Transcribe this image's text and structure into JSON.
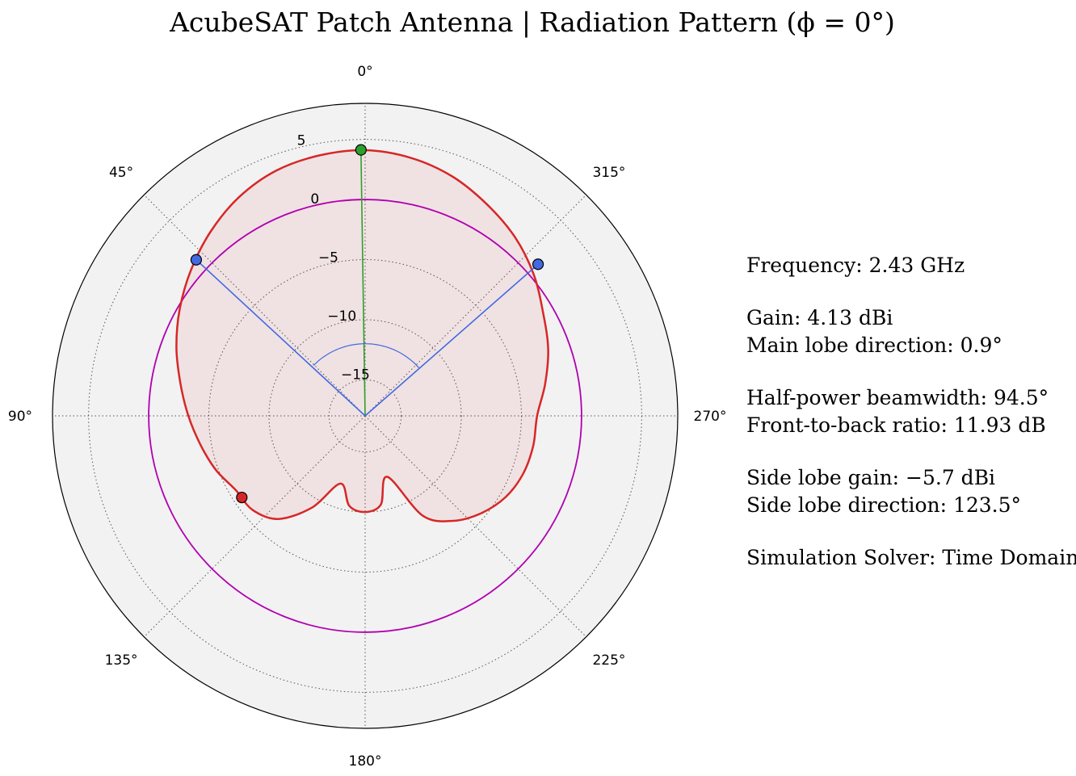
{
  "title": "AcubeSAT Patch Antenna | Radiation Pattern (ϕ = 0°)",
  "chart_data": {
    "type": "polar-line",
    "title": "AcubeSAT Patch Antenna | Radiation Pattern (ϕ = 0°)",
    "theta_zero_location": "top",
    "theta_direction": "counter-clockwise",
    "theta_ticks": [
      "0°",
      "45°",
      "90°",
      "135°",
      "180°",
      "225°",
      "270°",
      "315°"
    ],
    "r_ticks": [
      "−15",
      "−10",
      "−5",
      "0",
      "5"
    ],
    "r_tick_values": [
      -15,
      -10,
      -5,
      0,
      5
    ],
    "rlim": [
      -18,
      8
    ],
    "rticks_angle_deg": 13,
    "grid": true,
    "series": [
      {
        "role": "gain pattern",
        "color": "#d62728",
        "fill": "#d62728",
        "fill_opacity": 0.08,
        "theta_deg": [
          0,
          10,
          20,
          30,
          40,
          50,
          60,
          70,
          80,
          90,
          100,
          110,
          120,
          130,
          140,
          150,
          160,
          170,
          180,
          190,
          200,
          210,
          220,
          230,
          240,
          250,
          260,
          270,
          280,
          290,
          300,
          310,
          320,
          330,
          340,
          350,
          360
        ],
        "gain_dbi": [
          4.1,
          4.0,
          3.7,
          3.0,
          2.0,
          0.9,
          -0.2,
          -1.3,
          -2.4,
          -3.3,
          -4.1,
          -4.8,
          -5.6,
          -5.8,
          -6.8,
          -9.2,
          -12.0,
          -10.4,
          -10.0,
          -10.5,
          -12.6,
          -8.4,
          -6.6,
          -5.4,
          -4.5,
          -4.0,
          -3.8,
          -3.7,
          -2.8,
          -1.8,
          -0.9,
          0.3,
          1.4,
          2.3,
          3.2,
          3.8,
          4.1
        ]
      },
      {
        "role": "0 dBi isotropic reference",
        "color": "#b100b1",
        "r": 0
      }
    ],
    "markers": [
      {
        "role": "main lobe",
        "color": "#2ca02c",
        "theta_deg": 0.9,
        "r": 4.13
      },
      {
        "role": "half-power point",
        "color": "#4169e1",
        "theta_deg": 47.25,
        "r": 1.13
      },
      {
        "role": "half-power point",
        "color": "#4169e1",
        "theta_deg": 311.25,
        "r": 1.13
      },
      {
        "role": "side lobe",
        "color": "#d62728",
        "theta_deg": 123.5,
        "r": -5.7
      }
    ],
    "beamwidth_arc": {
      "color": "#4169e1",
      "from_deg": -48.35,
      "to_deg": 46.15,
      "r": -12.0
    }
  },
  "info": {
    "frequency": "Frequency: 2.43 GHz",
    "gain": "Gain: 4.13 dBi",
    "main_lobe": "Main lobe direction: 0.9°",
    "hpbw": "Half-power beamwidth: 94.5°",
    "fbr": "Front-to-back ratio: 11.93 dB",
    "side_lobe_gain": "Side lobe gain: −5.7 dBi",
    "side_lobe_dir": "Side lobe direction: 123.5°",
    "solver": "Simulation Solver: Time Domain"
  }
}
